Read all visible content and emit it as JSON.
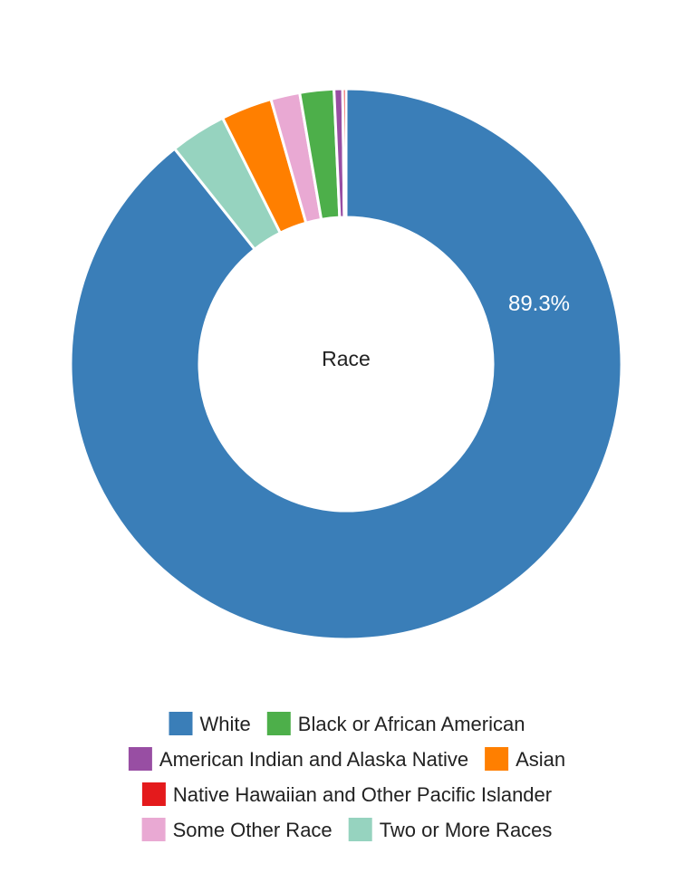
{
  "chart_data": {
    "type": "pie",
    "variant": "donut",
    "center_label": "Race",
    "categories": [
      "White",
      "Black or African American",
      "American Indian and Alaska Native",
      "Asian",
      "Native Hawaiian and Other Pacific Islander",
      "Some Other Race",
      "Two or More Races"
    ],
    "values": [
      89.3,
      2.0,
      0.5,
      3.0,
      0.2,
      1.7,
      3.3
    ],
    "colors": [
      "#3a7eb8",
      "#4daf4a",
      "#984ea3",
      "#ff7f00",
      "#e41a1c",
      "#e9a9d3",
      "#96d3bf"
    ],
    "slice_order": [
      0,
      6,
      3,
      5,
      1,
      2,
      4
    ],
    "data_labels": [
      {
        "category": "White",
        "text": "89.3%"
      }
    ],
    "legend": {
      "placement": "bottom",
      "rows": [
        [
          0,
          1
        ],
        [
          2,
          3
        ],
        [
          4
        ],
        [
          5,
          6
        ]
      ]
    }
  }
}
